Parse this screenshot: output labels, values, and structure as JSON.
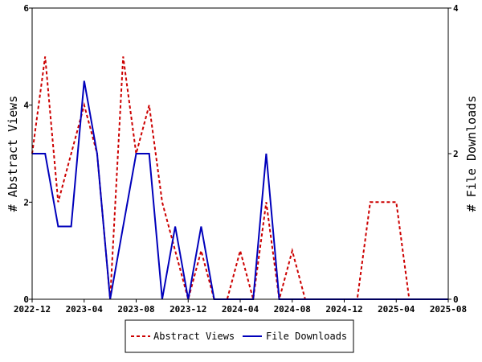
{
  "chart_data": {
    "type": "line",
    "ylabel_left": "# Abstract Views",
    "ylabel_right": "# File Downloads",
    "xlabel": "",
    "x_ticks": [
      "2022-12",
      "2023-04",
      "2023-08",
      "2023-12",
      "2024-04",
      "2024-08",
      "2024-12",
      "2025-04",
      "2025-08"
    ],
    "x_domain": [
      "2022-12",
      "2025-08"
    ],
    "ylim_left": [
      0,
      6
    ],
    "ylim_right": [
      0,
      4
    ],
    "y_ticks_left": [
      0,
      2,
      4,
      6
    ],
    "y_ticks_right": [
      0,
      2,
      4
    ],
    "grid": false,
    "legend_position": "bottom",
    "series": [
      {
        "name": "Abstract Views",
        "axis": "left",
        "color": "#cc0000",
        "style": "dashed",
        "x": [
          "2022-12",
          "2023-01",
          "2023-02",
          "2023-03",
          "2023-04",
          "2023-05",
          "2023-06",
          "2023-07",
          "2023-08",
          "2023-09",
          "2023-10",
          "2023-11",
          "2023-12",
          "2024-01",
          "2024-02",
          "2024-03",
          "2024-04",
          "2024-05",
          "2024-06",
          "2024-07",
          "2024-08",
          "2024-09",
          "2024-10",
          "2024-11",
          "2024-12",
          "2025-01",
          "2025-02",
          "2025-03",
          "2025-04",
          "2025-05",
          "2025-06",
          "2025-07",
          "2025-08"
        ],
        "values": [
          3,
          5,
          2,
          3,
          4,
          3,
          0,
          5,
          3,
          4,
          2,
          1,
          0,
          1,
          0,
          0,
          1,
          0,
          2,
          0,
          1,
          0,
          0,
          0,
          0,
          0,
          2,
          2,
          2,
          0,
          0,
          0,
          0
        ]
      },
      {
        "name": "File Downloads",
        "axis": "right",
        "color": "#0000bb",
        "style": "solid",
        "x": [
          "2022-12",
          "2023-01",
          "2023-02",
          "2023-03",
          "2023-04",
          "2023-05",
          "2023-06",
          "2023-07",
          "2023-08",
          "2023-09",
          "2023-10",
          "2023-11",
          "2023-12",
          "2024-01",
          "2024-02",
          "2024-03",
          "2024-04",
          "2024-05",
          "2024-06",
          "2024-07",
          "2024-08",
          "2024-09",
          "2024-10",
          "2024-11",
          "2024-12",
          "2025-01",
          "2025-02",
          "2025-03",
          "2025-04",
          "2025-05",
          "2025-06",
          "2025-07",
          "2025-08"
        ],
        "values": [
          2,
          2,
          1,
          1,
          3,
          2,
          0,
          1,
          2,
          2,
          0,
          1,
          0,
          1,
          0,
          0,
          0,
          0,
          2,
          0,
          0,
          0,
          0,
          0,
          0,
          0,
          0,
          0,
          0,
          0,
          0,
          0,
          0
        ]
      }
    ]
  }
}
